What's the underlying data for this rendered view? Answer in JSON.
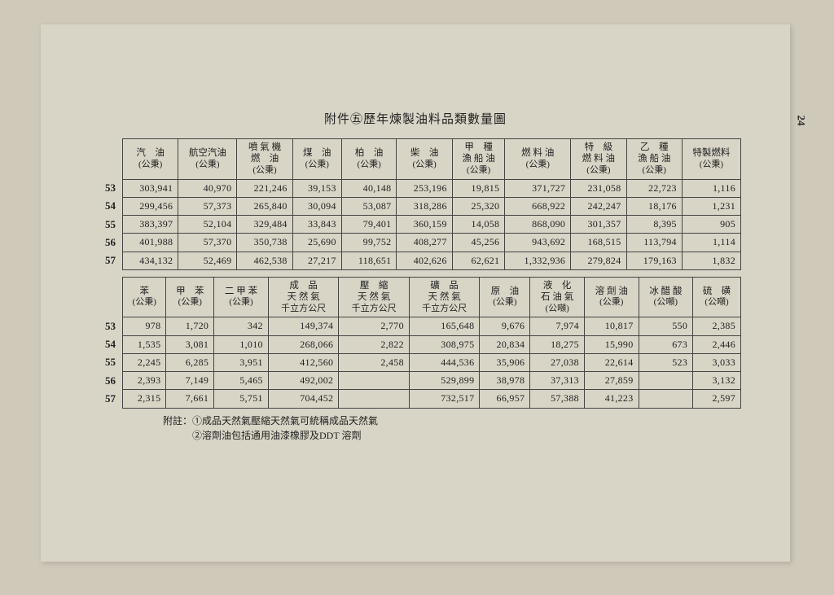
{
  "page_number": "24",
  "title": "附件㊄歷年煉製油料品類數量圖",
  "table1": {
    "columns": [
      {
        "label": "汽　油",
        "unit": "(公秉)"
      },
      {
        "label": "航空汽油",
        "unit": "(公秉)"
      },
      {
        "label": "噴 氣 機\n燃　油",
        "unit": "(公秉)"
      },
      {
        "label": "煤　油",
        "unit": "(公秉)"
      },
      {
        "label": "柏　油",
        "unit": "(公秉)"
      },
      {
        "label": "柴　油",
        "unit": "(公秉)"
      },
      {
        "label": "甲　種\n漁 船 油",
        "unit": "(公秉)"
      },
      {
        "label": "燃 料 油",
        "unit": "(公秉)"
      },
      {
        "label": "特　級\n燃 料 油",
        "unit": "(公秉)"
      },
      {
        "label": "乙　種\n漁 船 油",
        "unit": "(公秉)"
      },
      {
        "label": "特製燃料",
        "unit": "(公秉)"
      }
    ],
    "rows": [
      {
        "year": "53",
        "cells": [
          "303,941",
          "40,970",
          "221,246",
          "39,153",
          "40,148",
          "253,196",
          "19,815",
          "371,727",
          "231,058",
          "22,723",
          "1,116"
        ]
      },
      {
        "year": "54",
        "cells": [
          "299,456",
          "57,373",
          "265,840",
          "30,094",
          "53,087",
          "318,286",
          "25,320",
          "668,922",
          "242,247",
          "18,176",
          "1,231"
        ]
      },
      {
        "year": "55",
        "cells": [
          "383,397",
          "52,104",
          "329,484",
          "33,843",
          "79,401",
          "360,159",
          "14,058",
          "868,090",
          "301,357",
          "8,395",
          "905"
        ]
      },
      {
        "year": "56",
        "cells": [
          "401,988",
          "57,370",
          "350,738",
          "25,690",
          "99,752",
          "408,277",
          "45,256",
          "943,692",
          "168,515",
          "113,794",
          "1,114"
        ]
      },
      {
        "year": "57",
        "cells": [
          "434,132",
          "52,469",
          "462,538",
          "27,217",
          "118,651",
          "402,626",
          "62,621",
          "1,332,936",
          "279,824",
          "179,163",
          "1,832"
        ]
      }
    ]
  },
  "table2": {
    "columns": [
      {
        "label": "苯",
        "unit": "(公秉)"
      },
      {
        "label": "甲　苯",
        "unit": "(公秉)"
      },
      {
        "label": "二 甲 苯",
        "unit": "(公秉)"
      },
      {
        "label": "成　品\n天 然 氣",
        "unit": "千立方公尺"
      },
      {
        "label": "壓　縮\n天 然 氣",
        "unit": "千立方公尺"
      },
      {
        "label": "礦　品\n天 然 氣",
        "unit": "千立方公尺"
      },
      {
        "label": "原　油",
        "unit": "(公秉)"
      },
      {
        "label": "液　化\n石 油 氣",
        "unit": "(公噸)"
      },
      {
        "label": "溶 劑 油",
        "unit": "(公秉)"
      },
      {
        "label": "冰 醋 酸",
        "unit": "(公噸)"
      },
      {
        "label": "硫　磺",
        "unit": "(公噸)"
      }
    ],
    "rows": [
      {
        "year": "53",
        "cells": [
          "978",
          "1,720",
          "342",
          "149,374",
          "2,770",
          "165,648",
          "9,676",
          "7,974",
          "10,817",
          "550",
          "2,385"
        ]
      },
      {
        "year": "54",
        "cells": [
          "1,535",
          "3,081",
          "1,010",
          "268,066",
          "2,822",
          "308,975",
          "20,834",
          "18,275",
          "15,990",
          "673",
          "2,446"
        ]
      },
      {
        "year": "55",
        "cells": [
          "2,245",
          "6,285",
          "3,951",
          "412,560",
          "2,458",
          "444,536",
          "35,906",
          "27,038",
          "22,614",
          "523",
          "3,033"
        ]
      },
      {
        "year": "56",
        "cells": [
          "2,393",
          "7,149",
          "5,465",
          "492,002",
          "",
          "529,899",
          "38,978",
          "37,313",
          "27,859",
          "",
          "3,132"
        ]
      },
      {
        "year": "57",
        "cells": [
          "2,315",
          "7,661",
          "5,751",
          "704,452",
          "",
          "732,517",
          "66,957",
          "57,388",
          "41,223",
          "",
          "2,597"
        ]
      }
    ]
  },
  "notes": [
    "附註：①成品天然氣壓縮天然氣可統稱成品天然氣",
    "　　　②溶劑油包括通用油漆橡膠及DDT 溶劑"
  ]
}
